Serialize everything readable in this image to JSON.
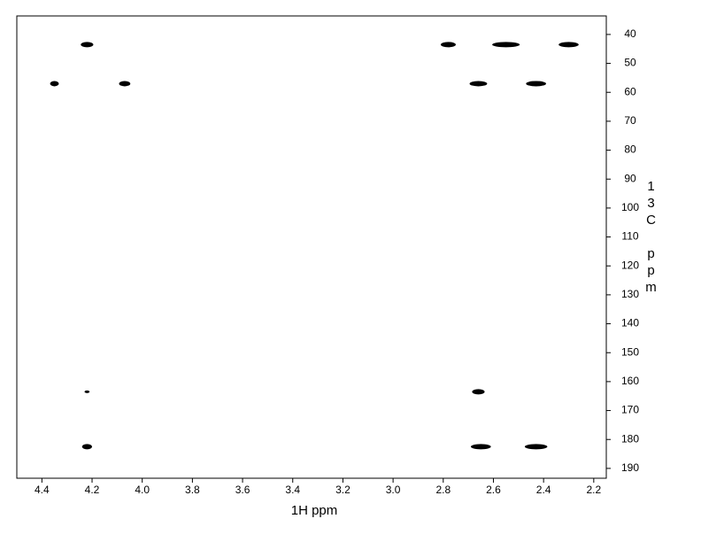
{
  "chart_data": {
    "type": "scatter",
    "xlabel": "1H ppm",
    "ylabel": "13C ppm",
    "xlim": [
      4.5,
      2.15
    ],
    "ylim": [
      33.6,
      193.4
    ],
    "xticks": [
      4.4,
      4.2,
      {
        "value": 4.0,
        "label": "4.0"
      },
      3.8,
      3.6,
      3.4,
      3.2,
      {
        "value": 3.0,
        "label": "3.0"
      },
      2.8,
      2.6,
      2.4,
      2.2
    ],
    "yticks": [
      40,
      50,
      60,
      70,
      80,
      90,
      100,
      110,
      120,
      130,
      140,
      150,
      160,
      170,
      180,
      190
    ],
    "color": "#000000",
    "x": [
      4.22,
      2.78,
      2.55,
      2.3,
      4.35,
      4.07,
      2.66,
      2.43,
      4.22,
      2.66,
      4.22,
      2.65,
      2.43
    ],
    "values": [
      43.5,
      43.5,
      43.5,
      43.5,
      57,
      57,
      57,
      57,
      163.5,
      163.5,
      182.5,
      182.5,
      182.5
    ],
    "widths": [
      0.05,
      0.06,
      0.11,
      0.08,
      0.035,
      0.045,
      0.07,
      0.08,
      0.02,
      0.05,
      0.04,
      0.08,
      0.09
    ]
  }
}
